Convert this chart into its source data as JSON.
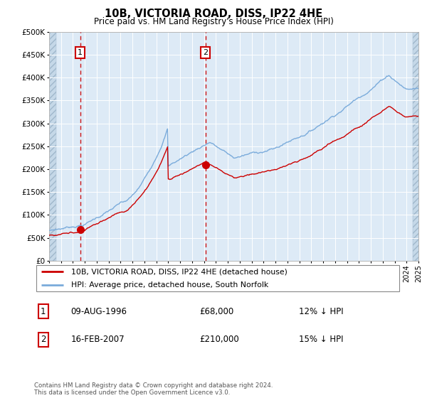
{
  "title": "10B, VICTORIA ROAD, DISS, IP22 4HE",
  "subtitle": "Price paid vs. HM Land Registry's House Price Index (HPI)",
  "legend_line1": "10B, VICTORIA ROAD, DISS, IP22 4HE (detached house)",
  "legend_line2": "HPI: Average price, detached house, South Norfolk",
  "annotation1_date": "09-AUG-1996",
  "annotation1_price": "£68,000",
  "annotation1_hpi": "12% ↓ HPI",
  "annotation2_date": "16-FEB-2007",
  "annotation2_price": "£210,000",
  "annotation2_hpi": "15% ↓ HPI",
  "footnote": "Contains HM Land Registry data © Crown copyright and database right 2024.\nThis data is licensed under the Open Government Licence v3.0.",
  "price_color": "#cc0000",
  "hpi_color": "#7aabdb",
  "background_color": "#ddeaf6",
  "grid_color": "#ffffff",
  "annotation_line_color": "#cc0000",
  "ylim": [
    0,
    500000
  ],
  "yticks": [
    0,
    50000,
    100000,
    150000,
    200000,
    250000,
    300000,
    350000,
    400000,
    450000,
    500000
  ],
  "sale1_x": 1996.6,
  "sale1_y": 68000,
  "sale2_x": 2007.12,
  "sale2_y": 210000,
  "xmin": 1994,
  "xmax": 2025
}
